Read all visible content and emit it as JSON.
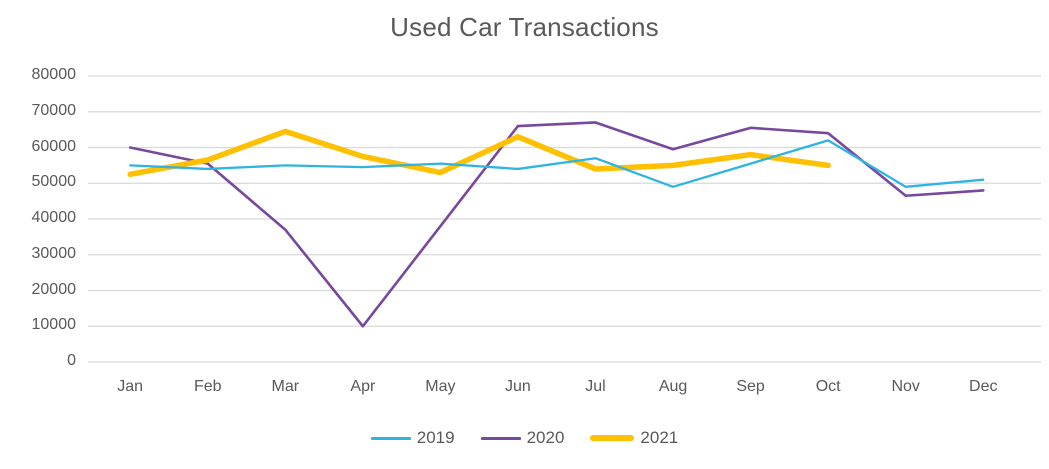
{
  "title": "Used Car Transactions",
  "colors": {
    "text": "#595959",
    "gridline": "#d9d9d9",
    "background": "#ffffff",
    "series_2019": "#2eb4e1",
    "series_2020": "#77489d",
    "series_2021": "#ffc000"
  },
  "chart_data": {
    "type": "line",
    "title": "Used Car Transactions",
    "categories": [
      "Jan",
      "Feb",
      "Mar",
      "Apr",
      "May",
      "Jun",
      "Jul",
      "Aug",
      "Sep",
      "Oct",
      "Nov",
      "Dec"
    ],
    "y_ticks": [
      0,
      10000,
      20000,
      30000,
      40000,
      50000,
      60000,
      70000,
      80000
    ],
    "ylim": [
      0,
      80000
    ],
    "grid": true,
    "legend_position": "bottom",
    "draw_order": [
      1,
      2,
      0
    ],
    "series": [
      {
        "name": "2019",
        "color": "#2eb4e1",
        "stroke_width": 2.3,
        "values": [
          55000,
          54000,
          55000,
          54500,
          55500,
          54000,
          57000,
          49000,
          55500,
          62000,
          49000,
          51000
        ]
      },
      {
        "name": "2020",
        "color": "#77489d",
        "stroke_width": 2.6,
        "values": [
          60000,
          55500,
          37000,
          10000,
          38000,
          66000,
          67000,
          59500,
          65500,
          64000,
          46500,
          48000
        ]
      },
      {
        "name": "2021",
        "color": "#ffc000",
        "stroke_width": 5.5,
        "values": [
          52500,
          56500,
          64500,
          57500,
          53000,
          63000,
          54000,
          55000,
          58000,
          55000
        ]
      }
    ]
  }
}
